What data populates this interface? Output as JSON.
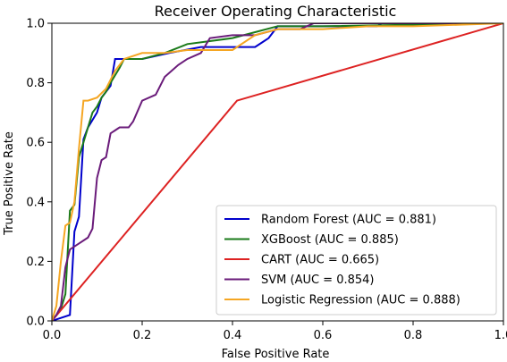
{
  "chart_data": {
    "type": "line",
    "title": "Receiver Operating Characteristic",
    "xlabel": "False Positive Rate",
    "ylabel": "True Positive Rate",
    "xlim": [
      0,
      1.0
    ],
    "ylim": [
      0,
      1.0
    ],
    "xticks": [
      "0.0",
      "0.2",
      "0.4",
      "0.6",
      "0.8",
      "1.0"
    ],
    "yticks": [
      "0.0",
      "0.2",
      "0.4",
      "0.6",
      "0.8",
      "1.0"
    ],
    "grid": false,
    "legend_position": "lower-right",
    "series": [
      {
        "name": "Random Forest (AUC = 0.881)",
        "color": "#0000cc",
        "x": [
          0,
          0.02,
          0.04,
          0.05,
          0.06,
          0.07,
          0.08,
          0.1,
          0.11,
          0.13,
          0.14,
          0.17,
          0.18,
          0.2,
          0.26,
          0.33,
          0.4,
          0.45,
          0.47,
          0.48,
          0.49,
          0.5,
          0.52,
          0.55,
          0.62,
          0.7,
          0.72,
          0.73,
          1.0
        ],
        "y": [
          0,
          0.01,
          0.02,
          0.3,
          0.35,
          0.61,
          0.65,
          0.7,
          0.75,
          0.79,
          0.88,
          0.88,
          0.88,
          0.88,
          0.9,
          0.92,
          0.92,
          0.92,
          0.94,
          0.95,
          0.97,
          0.99,
          0.99,
          0.99,
          0.99,
          0.99,
          0.99,
          1.0,
          1.0
        ]
      },
      {
        "name": "XGBoost (AUC = 0.885)",
        "color": "#1a7a1a",
        "x": [
          0,
          0.02,
          0.03,
          0.04,
          0.05,
          0.06,
          0.07,
          0.08,
          0.09,
          0.1,
          0.11,
          0.12,
          0.13,
          0.15,
          0.16,
          0.18,
          0.2,
          0.25,
          0.3,
          0.35,
          0.4,
          0.45,
          0.5,
          0.55,
          0.6,
          1.0
        ],
        "y": [
          0,
          0.04,
          0.09,
          0.37,
          0.39,
          0.55,
          0.6,
          0.65,
          0.7,
          0.72,
          0.75,
          0.77,
          0.8,
          0.85,
          0.88,
          0.88,
          0.88,
          0.9,
          0.93,
          0.94,
          0.95,
          0.97,
          0.99,
          0.99,
          0.99,
          1.0
        ]
      },
      {
        "name": "CART (AUC = 0.665)",
        "color": "#dd2222",
        "x": [
          0,
          0.41,
          1.0
        ],
        "y": [
          0,
          0.74,
          1.0
        ]
      },
      {
        "name": "SVM (AUC = 0.854)",
        "color": "#6a1b7a",
        "x": [
          0,
          0.01,
          0.02,
          0.03,
          0.04,
          0.06,
          0.08,
          0.09,
          0.1,
          0.11,
          0.12,
          0.13,
          0.15,
          0.17,
          0.18,
          0.2,
          0.23,
          0.25,
          0.28,
          0.3,
          0.33,
          0.35,
          0.4,
          0.45,
          0.5,
          0.55,
          0.58,
          0.6,
          0.65,
          1.0
        ],
        "y": [
          0,
          0.02,
          0.05,
          0.18,
          0.24,
          0.26,
          0.28,
          0.31,
          0.48,
          0.54,
          0.55,
          0.63,
          0.65,
          0.65,
          0.67,
          0.74,
          0.76,
          0.82,
          0.86,
          0.88,
          0.9,
          0.95,
          0.96,
          0.96,
          0.98,
          0.98,
          1.0,
          1.0,
          1.0,
          1.0
        ]
      },
      {
        "name": "Logistic Regression (AUC = 0.888)",
        "color": "#f5a623",
        "x": [
          0,
          0.01,
          0.02,
          0.03,
          0.04,
          0.05,
          0.06,
          0.07,
          0.08,
          0.1,
          0.12,
          0.14,
          0.16,
          0.2,
          0.25,
          0.3,
          0.35,
          0.4,
          0.45,
          0.5,
          0.55,
          0.6,
          0.7,
          0.8,
          1.0
        ],
        "y": [
          0,
          0.05,
          0.2,
          0.32,
          0.33,
          0.4,
          0.58,
          0.74,
          0.74,
          0.75,
          0.78,
          0.84,
          0.88,
          0.9,
          0.9,
          0.91,
          0.91,
          0.91,
          0.96,
          0.98,
          0.98,
          0.98,
          0.99,
          0.99,
          1.0
        ]
      }
    ]
  }
}
